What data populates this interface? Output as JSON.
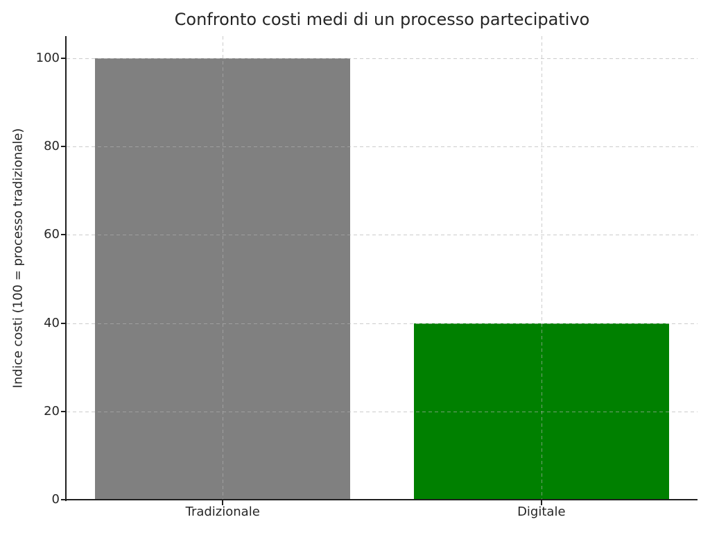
{
  "chart_data": {
    "type": "bar",
    "title": "Confronto costi medi di un processo partecipativo",
    "categories": [
      "Tradizionale",
      "Digitale"
    ],
    "values": [
      100,
      40
    ],
    "bar_colors": [
      "#808080",
      "#008000"
    ],
    "xlabel": "",
    "ylabel": "Indice costi (100 = processo tradizionale)",
    "ylim": [
      0,
      105
    ],
    "yticks": [
      0,
      20,
      40,
      60,
      80,
      100
    ],
    "bar_width_fraction": 0.8,
    "grid": true,
    "grid_linestyle": "dashed",
    "grid_axes": "both",
    "grid_above_bars": true,
    "legend_position": "none",
    "colors": {
      "background": "#ffffff",
      "axis_spine": "#1f1f1f",
      "text": "#262626",
      "grid": "#b0b0b0"
    }
  }
}
